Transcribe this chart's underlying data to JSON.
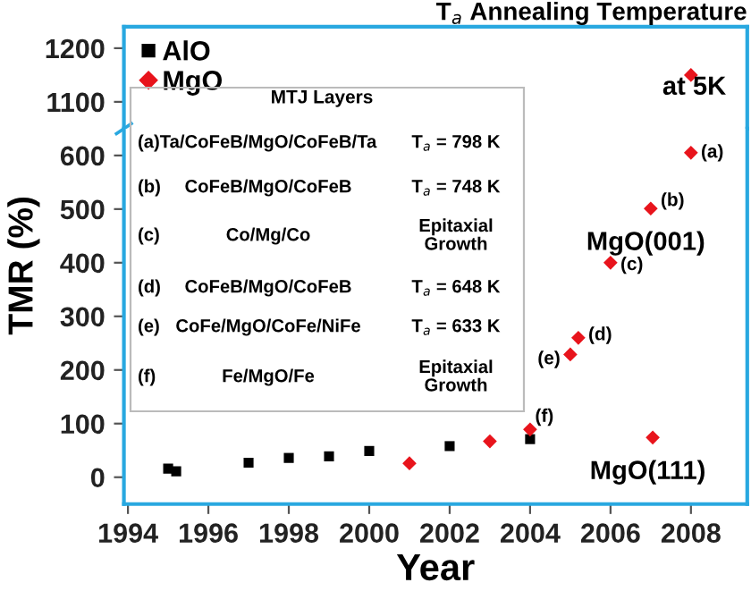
{
  "chart_data": [
    {
      "type": "scatter",
      "title": "T$_{a}$ Annealing Temperature",
      "series": [
        {
          "name": "AlO",
          "color": "#000000",
          "marker": "square"
        },
        {
          "name": "MgO",
          "color": "#e8141c",
          "marker": "diamond",
          "x": [
            2008
          ],
          "values": [
            1150
          ]
        }
      ],
      "xlim": [
        1993.9,
        2009.4
      ],
      "ylim": [
        1050,
        1240
      ],
      "yticks": [
        1100,
        1200
      ],
      "tick_labels": "y",
      "legend": "top left",
      "grid": false,
      "annotations": [
        "at 5K"
      ]
    },
    {
      "type": "scatter",
      "xlabel": "Year",
      "ylabel": "TMR (%)",
      "series": [
        {
          "color": "#000000",
          "marker": "square",
          "x": [
            1995,
            1995.2,
            1997,
            1998,
            1999,
            2000,
            2002,
            2004
          ],
          "values": [
            16,
            11,
            27,
            36,
            39,
            49,
            58,
            71
          ]
        },
        {
          "color": "#e8141c",
          "marker": "diamond",
          "x": [
            2001,
            2003,
            2004,
            2005,
            2005.2,
            2006,
            2007,
            2007.05,
            2008
          ],
          "values": [
            26,
            67,
            89,
            229,
            260,
            400,
            501,
            74,
            605
          ]
        }
      ],
      "xlim": [
        1993.9,
        2009.4
      ],
      "xticks": [
        1994,
        1996,
        1998,
        2000,
        2002,
        2004,
        2006,
        2008
      ],
      "ylim": [
        -50,
        650
      ],
      "yticks": [
        0,
        100,
        200,
        300,
        400,
        500,
        600
      ],
      "grid": false,
      "annotations": [
        "MTJ Layers",
        "(a)",
        "Ta/CoFeB/MgO/CoFeB/Ta",
        "T$_{a}$ = 798 K",
        "(b)",
        "CoFeB/MgO/CoFeB",
        "T$_{a}$ = 748 K",
        "(c)",
        "Co/Mg/Co",
        "Epitaxial\nGrowth",
        "(d)",
        "CoFeB/MgO/CoFeB",
        "T$_{a}$ = 648 K",
        "(e)",
        "CoFe/MgO/CoFe/NiFe",
        "T$_{a}$ = 633 K",
        "(f)",
        "Fe/MgO/Fe",
        "Epitaxial\nGrowth",
        {
          "text": "(a)",
          "x": 2008,
          "y": 605
        },
        {
          "text": "(b)",
          "x": 2007,
          "y": 501
        },
        {
          "text": "MgO(001)",
          "x": 2007,
          "y": 501
        },
        {
          "text": "(c)",
          "x": 2006,
          "y": 400
        },
        {
          "text": "(d)",
          "x": 2005.2,
          "y": 260
        },
        {
          "text": "(e)",
          "x": 2005,
          "y": 229
        },
        {
          "text": "(f)",
          "x": 2004,
          "y": 89
        },
        {
          "text": "MgO(111)",
          "x": 2007.05,
          "y": 74
        }
      ]
    }
  ]
}
